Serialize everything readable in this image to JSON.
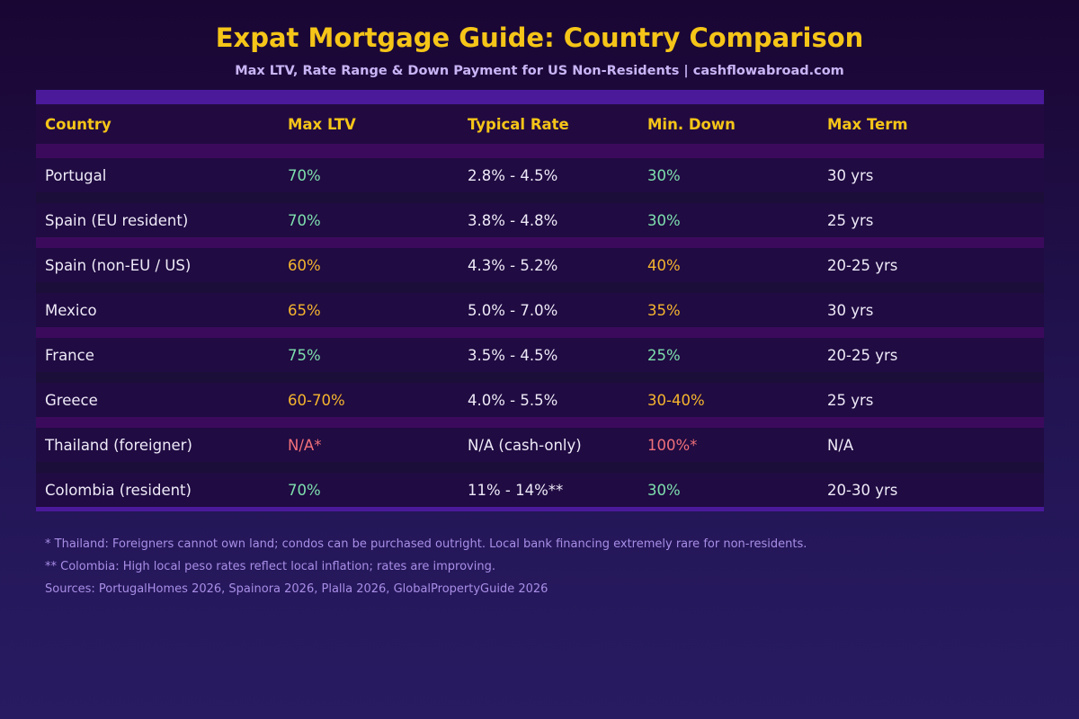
{
  "title": "Expat Mortgage Guide: Country Comparison",
  "subtitle": "Max LTV, Rate Range & Down Payment for US Non-Residents | cashflowabroad.com",
  "columns": [
    "Country",
    "Max LTV",
    "Typical Rate",
    "Min. Down",
    "Max Term"
  ],
  "rows": [
    {
      "country": "Portugal",
      "ltv": "70%",
      "rate": "2.8% - 4.5%",
      "down": "30%",
      "term": "30 yrs",
      "tier": "good"
    },
    {
      "country": "Spain (EU resident)",
      "ltv": "70%",
      "rate": "3.8% - 4.8%",
      "down": "30%",
      "term": "25 yrs",
      "tier": "good"
    },
    {
      "country": "Spain (non-EU / US)",
      "ltv": "60%",
      "rate": "4.3% - 5.2%",
      "down": "40%",
      "term": "20-25 yrs",
      "tier": "mid"
    },
    {
      "country": "Mexico",
      "ltv": "65%",
      "rate": "5.0% - 7.0%",
      "down": "35%",
      "term": "30 yrs",
      "tier": "mid"
    },
    {
      "country": "France",
      "ltv": "75%",
      "rate": "3.5% - 4.5%",
      "down": "25%",
      "term": "20-25 yrs",
      "tier": "good"
    },
    {
      "country": "Greece",
      "ltv": "60-70%",
      "rate": "4.0% - 5.5%",
      "down": "30-40%",
      "term": "25 yrs",
      "tier": "mid"
    },
    {
      "country": "Thailand (foreigner)",
      "ltv": "N/A*",
      "rate": "N/A (cash-only)",
      "down": "100%*",
      "term": "N/A",
      "tier": "bad"
    },
    {
      "country": "Colombia (resident)",
      "ltv": "70%",
      "rate": "11% - 14%**",
      "down": "30%",
      "term": "20-30 yrs",
      "tier": "good"
    }
  ],
  "notes": [
    "* Thailand: Foreigners cannot own land; condos can be purchased outright. Local bank financing extremely rare for non-residents.",
    "** Colombia: High local peso rates reflect local inflation; rates are improving.",
    "Sources: PortugalHomes 2026, Spainora 2026, Plalla 2026, GlobalPropertyGuide 2026"
  ],
  "colors": {
    "accent": "#f5c518",
    "good": "#7ee0ae",
    "mid": "#f5b52e",
    "bad": "#f0707a"
  }
}
